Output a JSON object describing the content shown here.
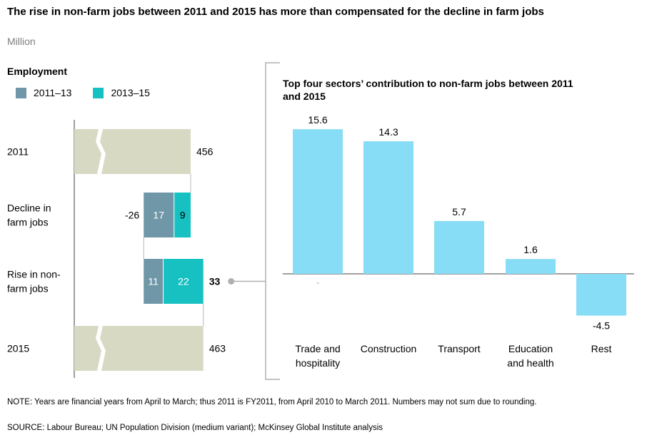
{
  "title": "The rise in non-farm jobs between 2011 and 2015 has more than compensated for the decline in farm jobs",
  "unit": "Million",
  "left_panel": {
    "heading": "Employment",
    "legend": [
      {
        "label": "2011–13",
        "color": "#6f97a8"
      },
      {
        "label": "2013–15",
        "color": "#17c1c2"
      }
    ]
  },
  "right_panel": {
    "title": "Top four sectors’ contribution to non-farm jobs between 2011 and 2015"
  },
  "note": "NOTE: Years are financial years from April to March; thus 2011 is FY2011, from April 2010 to March 2011. Numbers may not sum due to rounding.",
  "source": "SOURCE:  Labour Bureau; UN Population Division (medium variant); McKinsey Global Institute analysis",
  "colors": {
    "base_bar": "#d8d9c3",
    "period1": "#6f97a8",
    "period2": "#17c1c2",
    "sector_bar": "#87dcf6",
    "axis": "#808080"
  },
  "chart_data": [
    {
      "type": "bar",
      "subtype": "waterfall",
      "heading": "Employment",
      "unit": "Million",
      "series_names": [
        "2011–13",
        "2013–15"
      ],
      "rows": [
        {
          "label": "2011",
          "total": 456,
          "total_label": "456"
        },
        {
          "label": "Decline in farm jobs",
          "label_lines": [
            "Decline in",
            "farm jobs"
          ],
          "total": -26,
          "total_label": "-26",
          "segments": [
            17,
            9
          ],
          "segment_labels": [
            "17",
            "9"
          ]
        },
        {
          "label": "Rise in non-farm jobs",
          "label_lines": [
            "Rise in non-",
            "farm jobs"
          ],
          "total": 33,
          "total_label": "33",
          "segments": [
            11,
            22
          ],
          "segment_labels": [
            "11",
            "22"
          ]
        },
        {
          "label": "2015",
          "total": 463,
          "total_label": "463"
        }
      ]
    },
    {
      "type": "bar",
      "title": "Top four sectors’ contribution to non-farm jobs between 2011 and 2015",
      "categories": [
        "Trade and hospitality",
        "Construction",
        "Transport",
        "Education and health",
        "Rest"
      ],
      "category_lines": [
        [
          "Trade and",
          "hospitality"
        ],
        [
          "Construction"
        ],
        [
          "Transport"
        ],
        [
          "Education",
          "and health"
        ],
        [
          "Rest"
        ]
      ],
      "values": [
        15.6,
        14.3,
        5.7,
        1.6,
        -4.5
      ],
      "value_labels": [
        "15.6",
        "14.3",
        "5.7",
        "1.6",
        "-4.5"
      ],
      "extra_mark": "-",
      "ylim": [
        -4.5,
        15.6
      ]
    }
  ]
}
